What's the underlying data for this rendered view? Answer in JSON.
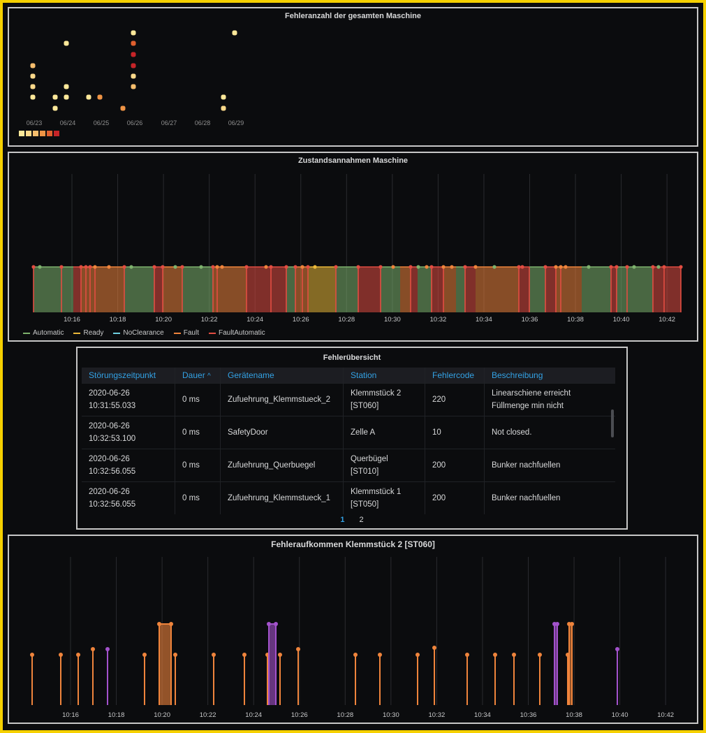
{
  "panels": {
    "heatmap": {
      "title": "Fehleranzahl der gesamten Maschine",
      "days": [
        "06/23",
        "06/24",
        "06/25",
        "06/26",
        "06/27",
        "06/28",
        "06/29"
      ],
      "scale_colors": [
        "#fde899",
        "#fbd98a",
        "#f6be6d",
        "#ef9445",
        "#e05f2e",
        "#c62428"
      ]
    },
    "states": {
      "title": "Zustandsannahmen Maschine",
      "times": [
        "10:16",
        "10:18",
        "10:20",
        "10:22",
        "10:24",
        "10:26",
        "10:28",
        "10:30",
        "10:32",
        "10:34",
        "10:36",
        "10:38",
        "10:40",
        "10:42"
      ],
      "legend": [
        {
          "label": "Automatic",
          "color": "#7eb26d"
        },
        {
          "label": "Ready",
          "color": "#eab839"
        },
        {
          "label": "NoClearance",
          "color": "#6ed0e0"
        },
        {
          "label": "Fault",
          "color": "#ef843c"
        },
        {
          "label": "FaultAutomatic",
          "color": "#e24d42"
        }
      ]
    },
    "table": {
      "title": "Fehlerübersicht",
      "columns": [
        "Störungszeitpunkt",
        "Dauer",
        "Gerätename",
        "Station",
        "Fehlercode",
        "Beschreibung"
      ],
      "sort_indicator": "^",
      "rows": [
        {
          "time_date": "2020-06-26",
          "time_clock": "10:31:55.033",
          "duration": "0 ms",
          "device": "Zufuehrung_Klemmstueck_2",
          "station_1": "Klemmstück 2",
          "station_2": "[ST060]",
          "code": "220",
          "desc_1": "Linearschiene erreicht",
          "desc_2": "Füllmenge min nicht"
        },
        {
          "time_date": "2020-06-26",
          "time_clock": "10:32:53.100",
          "duration": "0 ms",
          "device": "SafetyDoor",
          "station_1": "Zelle A",
          "station_2": "",
          "code": "10",
          "desc_1": "Not closed.",
          "desc_2": ""
        },
        {
          "time_date": "2020-06-26",
          "time_clock": "10:32:56.055",
          "duration": "0 ms",
          "device": "Zufuehrung_Querbuegel",
          "station_1": "Querbügel",
          "station_2": "[ST010]",
          "code": "200",
          "desc_1": "Bunker nachfuellen",
          "desc_2": ""
        },
        {
          "time_date": "2020-06-26",
          "time_clock": "10:32:56.055",
          "duration": "0 ms",
          "device": "Zufuehrung_Klemmstueck_1",
          "station_1": "Klemmstück 1",
          "station_2": "[ST050]",
          "code": "200",
          "desc_1": "Bunker nachfuellen",
          "desc_2": ""
        }
      ],
      "pages": [
        "1",
        "2"
      ],
      "active_page": "1"
    },
    "occurrences": {
      "title": "Fehleraufkommen Klemmstück 2 [ST060]",
      "times": [
        "10:16",
        "10:18",
        "10:20",
        "10:22",
        "10:24",
        "10:26",
        "10:28",
        "10:30",
        "10:32",
        "10:34",
        "10:36",
        "10:38",
        "10:40",
        "10:42"
      ]
    }
  },
  "colors": {
    "automatic": "#7eb26d",
    "ready": "#eab839",
    "fault": "#ef843c",
    "faultautomatic": "#e24d42",
    "purple": "#a352cc",
    "link": "#33a2e5"
  }
}
